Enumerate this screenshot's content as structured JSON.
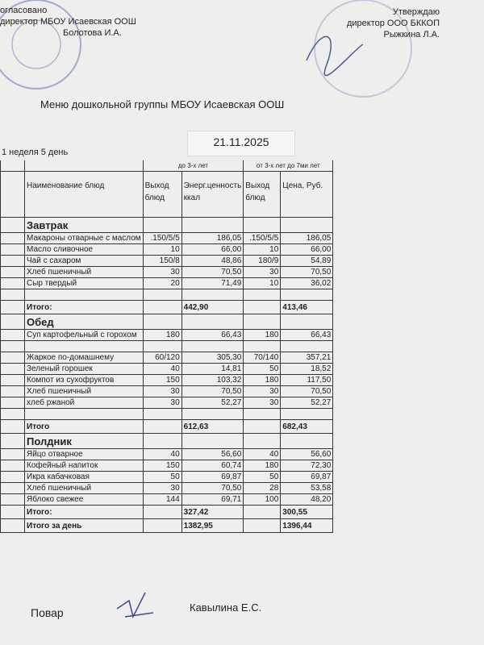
{
  "header": {
    "left": [
      "огласовано",
      "директор МБОУ Исаевская ООШ",
      "Болотова И.А."
    ],
    "right": [
      "Утверждаю",
      "директор ООО БККОП",
      "Рыжкина Л.А."
    ]
  },
  "title": "Меню  дошкольной группы МБОУ Исаевская ООШ",
  "date": "21.11.2025",
  "week": "1 неделя 5 день",
  "table": {
    "age_groups": [
      "до 3-х лет",
      "от 3-х лет до 7ми лет"
    ],
    "columns": [
      "Наименование блюд",
      "Выход блюд",
      "Энерг.ценность ккал",
      "Выход блюд",
      "Цена, Руб."
    ],
    "sections": [
      {
        "title": "Завтрак",
        "rows": [
          [
            "Макароны отварные с маслом",
            ".150/5/5",
            "186,05",
            ".150/5/5",
            "186,05"
          ],
          [
            "Масло сливочное",
            "10",
            "66,00",
            "10",
            "66,00"
          ],
          [
            "Чай с сахаром",
            "150/8",
            "48,86",
            "180/9",
            "54,89"
          ],
          [
            "Хлеб пшеничный",
            "30",
            "70,50",
            "30",
            "70,50"
          ],
          [
            "Сыр твердый",
            "20",
            "71,49",
            "10",
            "36,02"
          ]
        ],
        "total": [
          "Итого:",
          "442,90",
          "413,46"
        ]
      },
      {
        "title": "Обед",
        "rows": [
          [
            "Суп картофельный с горохом",
            "180",
            "66,43",
            "180",
            "66,43"
          ],
          [
            "Жаркое по-домашнему",
            "60/120",
            "305,30",
            "70/140",
            "357,21"
          ],
          [
            "Зеленый горошек",
            "40",
            "14,81",
            "50",
            "18,52"
          ],
          [
            "Компот из сухофруктов",
            "150",
            "103,32",
            "180",
            "117,50"
          ],
          [
            "Хлеб пшеничный",
            "30",
            "70,50",
            "30",
            "70,50"
          ],
          [
            "хлеб ржаной",
            "30",
            "52,27",
            "30",
            "52,27"
          ]
        ],
        "total": [
          "Итого",
          "612,63",
          "682,43"
        ]
      },
      {
        "title": "Полдник",
        "rows": [
          [
            "Яйцо отварное",
            "40",
            "56,60",
            "40",
            "56,60"
          ],
          [
            "Кофейный напиток",
            "150",
            "60,74",
            "180",
            "72,30"
          ],
          [
            "Икра кабачковая",
            "50",
            "69,87",
            "50",
            "69,87"
          ],
          [
            "Хлеб пшеничный",
            "30",
            "70,50",
            "28",
            "53,58"
          ],
          [
            "Яблоко свежее",
            "144",
            "69,71",
            "100",
            "48,20"
          ]
        ],
        "total": [
          "Итого:",
          "327,42",
          "300,55"
        ]
      }
    ],
    "day_total": [
      "Итого за день",
      "1382,95",
      "1396,44"
    ]
  },
  "footer": {
    "role": "Повар",
    "name": "Кавылина Е.С."
  }
}
